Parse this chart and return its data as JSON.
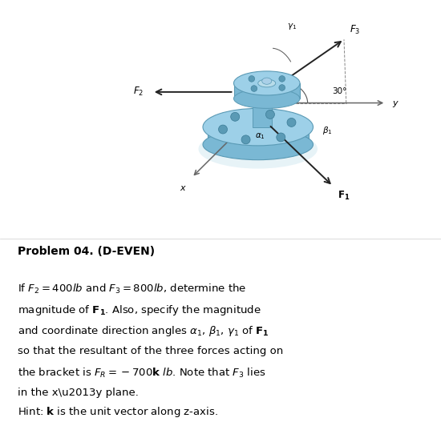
{
  "bg_color": "#ffffff",
  "text_color": "#000000",
  "title": "Problem 04. (D-EVEN)",
  "body_text": "If $F_2 = 400lb$ and $F_3 = 800lb$, determine the\nmagnitude of $\\mathbf{F_1}$. Also, specify the magnitude\nand coordinate direction angles $\\alpha_1$, $\\beta_1$, $\\gamma_1$ of $\\mathbf{F_1}$\nso that the resultant of the three forces acting on\nthe bracket is $F_R = -700\\mathbf{k}$ $lb$. Note that $F_3$ lies\nin the x–y plane.",
  "hint_text": "Hint: $\\mathbf{k}$ is the unit vector along z-axis.",
  "bracket_color_light": "#9dd0e8",
  "bracket_color_mid": "#7ab8d4",
  "bracket_color_dark": "#5a9ab5",
  "bracket_color_shadow": "#c8e8f0",
  "axis_color": "#666666",
  "arrow_color": "#222222",
  "fig_width": 5.5,
  "fig_height": 5.47,
  "dpi": 100,
  "ox": 0.595,
  "oy": 0.755
}
